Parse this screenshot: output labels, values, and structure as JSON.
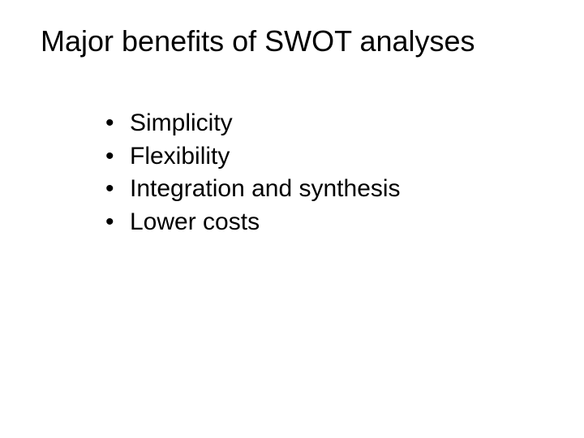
{
  "slide": {
    "title": "Major benefits of SWOT analyses",
    "bullets": [
      "Simplicity",
      "Flexibility",
      "Integration and synthesis",
      "Lower costs"
    ],
    "styling": {
      "background_color": "#ffffff",
      "text_color": "#000000",
      "font_family": "Arial, Helvetica, sans-serif",
      "title_fontsize": 36,
      "bullet_fontsize": 30,
      "title_weight": "normal",
      "bullet_marker": "•",
      "slide_width": 720,
      "slide_height": 540
    }
  }
}
